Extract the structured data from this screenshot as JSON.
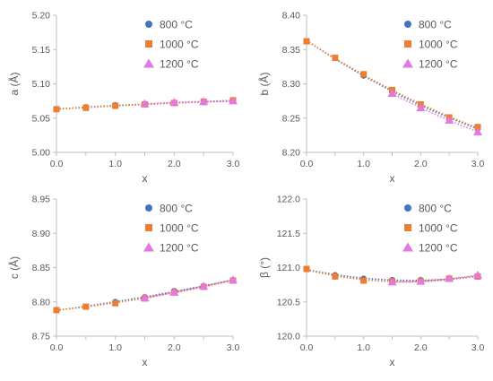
{
  "chart_data": [
    {
      "type": "scatter",
      "title": "",
      "xlabel": "x",
      "ylabel": "a (Å)",
      "xlim": [
        0.0,
        3.0
      ],
      "ylim": [
        5.0,
        5.2
      ],
      "xticks": [
        "0.0",
        "1.0",
        "2.0",
        "3.0"
      ],
      "yticks": [
        "5.00",
        "5.05",
        "5.10",
        "5.15",
        "5.20"
      ],
      "grid": false,
      "legend_position": "top-right",
      "series": [
        {
          "name": "800 °C",
          "color": "#4472C4",
          "marker": "circle",
          "x": [
            0.0,
            0.5,
            1.0,
            1.5,
            2.0,
            2.5,
            3.0
          ],
          "y": [
            5.063,
            5.066,
            5.069,
            5.07,
            5.072,
            5.073,
            5.075
          ]
        },
        {
          "name": "1000 °C",
          "color": "#ED7D31",
          "marker": "square",
          "x": [
            0.0,
            0.5,
            1.0,
            1.5,
            2.0,
            2.5,
            3.0
          ],
          "y": [
            5.063,
            5.065,
            5.068,
            5.07,
            5.072,
            5.074,
            5.076
          ]
        },
        {
          "name": "1200 °C",
          "color": "#E377E3",
          "marker": "triangle",
          "x": [
            1.5,
            2.0,
            2.5,
            3.0
          ],
          "y": [
            5.071,
            5.073,
            5.074,
            5.075
          ]
        }
      ]
    },
    {
      "type": "scatter",
      "title": "",
      "xlabel": "x",
      "ylabel": "b (Å)",
      "xlim": [
        0.0,
        3.0
      ],
      "ylim": [
        8.2,
        8.4
      ],
      "xticks": [
        "0.0",
        "1.0",
        "2.0",
        "3.0"
      ],
      "yticks": [
        "8.20",
        "8.25",
        "8.30",
        "8.35",
        "8.40"
      ],
      "grid": false,
      "legend_position": "top-right",
      "series": [
        {
          "name": "800 °C",
          "color": "#4472C4",
          "marker": "circle",
          "x": [
            0.0,
            0.5,
            1.0,
            1.5,
            2.0,
            2.5,
            3.0
          ],
          "y": [
            8.362,
            8.338,
            8.312,
            8.289,
            8.268,
            8.25,
            8.235
          ]
        },
        {
          "name": "1000 °C",
          "color": "#ED7D31",
          "marker": "square",
          "x": [
            0.0,
            0.5,
            1.0,
            1.5,
            2.0,
            2.5,
            3.0
          ],
          "y": [
            8.362,
            8.338,
            8.314,
            8.291,
            8.27,
            8.251,
            8.237
          ]
        },
        {
          "name": "1200 °C",
          "color": "#E377E3",
          "marker": "triangle",
          "x": [
            1.5,
            2.0,
            2.5,
            3.0
          ],
          "y": [
            8.286,
            8.265,
            8.247,
            8.23
          ]
        }
      ]
    },
    {
      "type": "scatter",
      "title": "",
      "xlabel": "x",
      "ylabel": "c (Å)",
      "xlim": [
        0.0,
        3.0
      ],
      "ylim": [
        8.75,
        8.95
      ],
      "xticks": [
        "0.0",
        "1.0",
        "2.0",
        "3.0"
      ],
      "yticks": [
        "8.75",
        "8.80",
        "8.85",
        "8.90",
        "8.95"
      ],
      "grid": false,
      "legend_position": "top-right",
      "series": [
        {
          "name": "800 °C",
          "color": "#4472C4",
          "marker": "circle",
          "x": [
            0.0,
            0.5,
            1.0,
            1.5,
            2.0,
            2.5,
            3.0
          ],
          "y": [
            8.788,
            8.793,
            8.8,
            8.807,
            8.816,
            8.823,
            8.832
          ]
        },
        {
          "name": "1000 °C",
          "color": "#ED7D31",
          "marker": "square",
          "x": [
            0.0,
            0.5,
            1.0,
            1.5,
            2.0,
            2.5,
            3.0
          ],
          "y": [
            8.788,
            8.793,
            8.798,
            8.805,
            8.814,
            8.822,
            8.831
          ]
        },
        {
          "name": "1200 °C",
          "color": "#E377E3",
          "marker": "triangle",
          "x": [
            1.5,
            2.0,
            2.5,
            3.0
          ],
          "y": [
            8.806,
            8.814,
            8.823,
            8.832
          ]
        }
      ]
    },
    {
      "type": "scatter",
      "title": "",
      "xlabel": "x",
      "ylabel": "β (°)",
      "xlim": [
        0.0,
        3.0
      ],
      "ylim": [
        120.0,
        122.0
      ],
      "xticks": [
        "0.0",
        "1.0",
        "2.0",
        "3.0"
      ],
      "yticks": [
        "120.0",
        "120.5",
        "121.0",
        "121.5",
        "122.0"
      ],
      "grid": false,
      "legend_position": "top-right",
      "series": [
        {
          "name": "800 °C",
          "color": "#4472C4",
          "marker": "circle",
          "x": [
            0.0,
            0.5,
            1.0,
            1.5,
            2.0,
            2.5,
            3.0
          ],
          "y": [
            120.98,
            120.89,
            120.84,
            120.82,
            120.82,
            120.84,
            120.87
          ]
        },
        {
          "name": "1000 °C",
          "color": "#ED7D31",
          "marker": "square",
          "x": [
            0.0,
            0.5,
            1.0,
            1.5,
            2.0,
            2.5,
            3.0
          ],
          "y": [
            120.98,
            120.87,
            120.81,
            120.8,
            120.8,
            120.84,
            120.87
          ]
        },
        {
          "name": "1200 °C",
          "color": "#E377E3",
          "marker": "triangle",
          "x": [
            1.5,
            2.0,
            2.5,
            3.0
          ],
          "y": [
            120.79,
            120.8,
            120.84,
            120.89
          ]
        }
      ]
    }
  ]
}
